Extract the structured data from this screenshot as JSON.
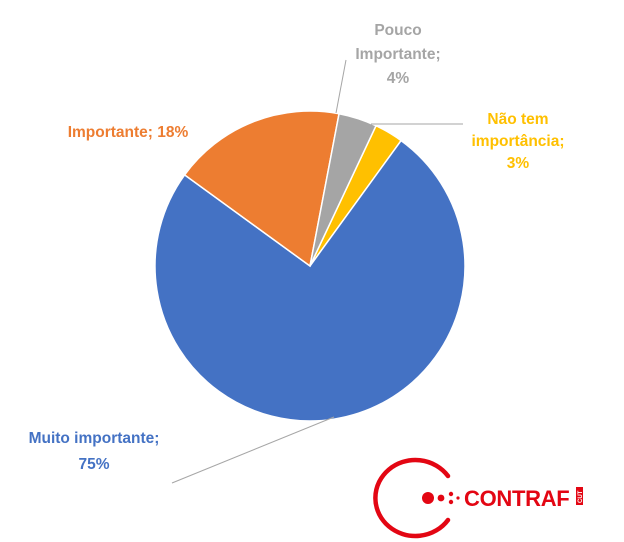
{
  "chart_data": {
    "type": "pie",
    "title": "",
    "slices": [
      {
        "label_lines": [
          "Muito importante;",
          "75%"
        ],
        "value": 75,
        "color": "#4472C4"
      },
      {
        "label_lines": [
          "Importante; 18%"
        ],
        "value": 18,
        "color": "#ED7D31"
      },
      {
        "label_lines": [
          "Pouco",
          "Importante;",
          "4%"
        ],
        "value": 4,
        "color": "#A5A5A5"
      },
      {
        "label_lines": [
          "Não tem",
          "importância;",
          "3%"
        ],
        "value": 3,
        "color": "#FFC000"
      }
    ],
    "slice_order_clockwise_from_12": [
      "Não tem importância",
      "Muito importante",
      "Importante",
      "Pouco Importante"
    ],
    "leader_line_color": "#A6A6A6",
    "border_color": "#FFFFFF"
  },
  "logo": {
    "text": "CONTRAF",
    "sub_text": "CUT",
    "color": "#E30613"
  }
}
